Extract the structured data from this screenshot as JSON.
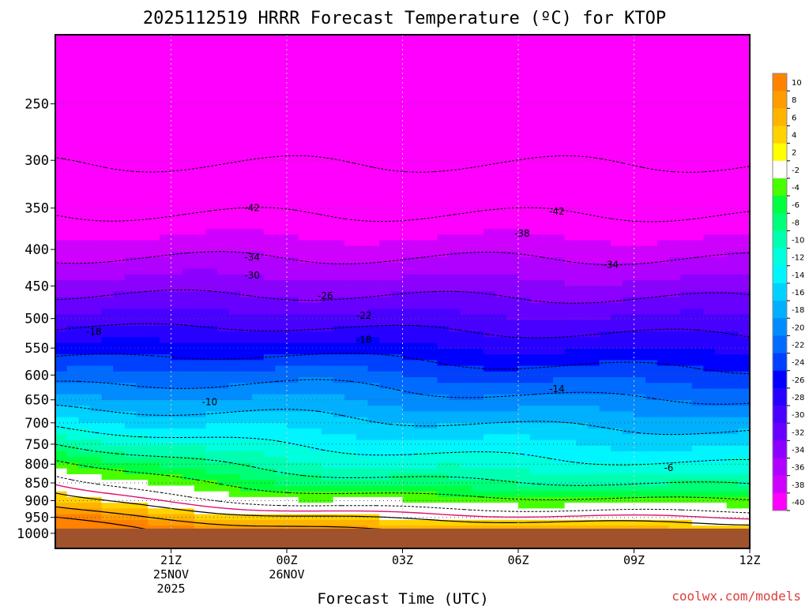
{
  "chart_data": {
    "type": "heatmap",
    "title": "2025112519 HRRR Forecast Temperature (ºC) for KTOP",
    "xlabel": "Forecast Time (UTC)",
    "ylabel": "",
    "credit": "coolwx.com/models",
    "x_range_hours": [
      -3.0,
      15.0
    ],
    "y_range_hpa": [
      200,
      1050
    ],
    "x_ticks": [
      {
        "hour": 0,
        "lines": [
          "21Z",
          "25NOV",
          "2025"
        ]
      },
      {
        "hour": 3,
        "lines": [
          "00Z",
          "26NOV"
        ]
      },
      {
        "hour": 6,
        "lines": [
          "03Z"
        ]
      },
      {
        "hour": 9,
        "lines": [
          "06Z"
        ]
      },
      {
        "hour": 12,
        "lines": [
          "09Z"
        ]
      },
      {
        "hour": 15,
        "lines": [
          "12Z"
        ]
      }
    ],
    "y_ticks": [
      250,
      300,
      350,
      400,
      450,
      500,
      550,
      600,
      650,
      700,
      750,
      800,
      850,
      900,
      950,
      1000
    ],
    "colorbar": {
      "levels": [
        10,
        8,
        6,
        4,
        2,
        -2,
        -4,
        -6,
        -8,
        -10,
        -12,
        -14,
        -16,
        -18,
        -20,
        -22,
        -24,
        -26,
        -28,
        -30,
        -32,
        -34,
        -36,
        -38,
        -40
      ],
      "colors": [
        "#ff8200",
        "#ff9c00",
        "#ffb400",
        "#ffd200",
        "#ffff00",
        "#ffffff",
        "#47ff00",
        "#00ff40",
        "#00ff78",
        "#00ffb0",
        "#00ffdc",
        "#00f5ff",
        "#00d2ff",
        "#00b0ff",
        "#008cff",
        "#006cff",
        "#0040ff",
        "#0000ff",
        "#2800ff",
        "#4800ff",
        "#6800ff",
        "#8c00ff",
        "#b000ff",
        "#d000ff",
        "#ff00ff"
      ]
    },
    "contour_labels": [
      {
        "text": "-42",
        "hour": 2.1,
        "hpa": 350
      },
      {
        "text": "-42",
        "hour": 10.0,
        "hpa": 354
      },
      {
        "text": "-38",
        "hour": 9.1,
        "hpa": 380
      },
      {
        "text": "-34",
        "hour": 2.1,
        "hpa": 410
      },
      {
        "text": "-34",
        "hour": 11.4,
        "hpa": 420
      },
      {
        "text": "-30",
        "hour": 2.1,
        "hpa": 435
      },
      {
        "text": "-26",
        "hour": 4.0,
        "hpa": 465
      },
      {
        "text": "-22",
        "hour": 5.0,
        "hpa": 495
      },
      {
        "text": "-18",
        "hour": 5.0,
        "hpa": 535
      },
      {
        "text": "-18",
        "hour": -2.0,
        "hpa": 522
      },
      {
        "text": "-14",
        "hour": 10.0,
        "hpa": 628
      },
      {
        "text": "-10",
        "hour": 1.0,
        "hpa": 655
      },
      {
        "text": "-6",
        "hour": 12.9,
        "hpa": 810
      }
    ],
    "surface_pressure_hpa": 985
  }
}
